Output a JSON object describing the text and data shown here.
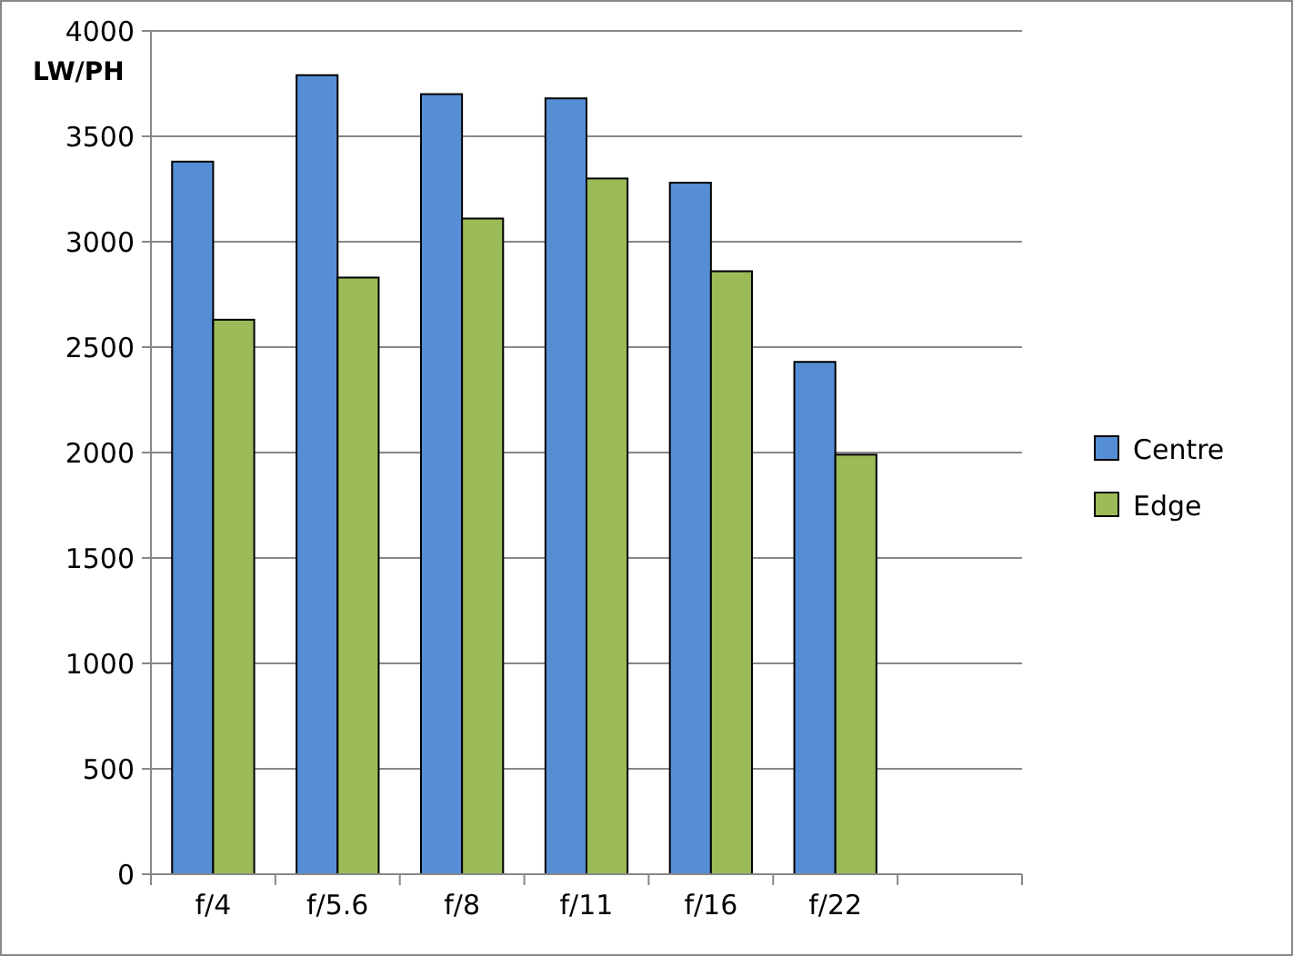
{
  "chart_data": {
    "type": "bar",
    "ylabel": "LW/PH",
    "categories": [
      "f/4",
      "f/5.6",
      "f/8",
      "f/11",
      "f/16",
      "f/22",
      null
    ],
    "series": [
      {
        "name": "Centre",
        "color": "#558ed5",
        "values": [
          3380,
          3790,
          3700,
          3680,
          3280,
          2430,
          null
        ]
      },
      {
        "name": "Edge",
        "color": "#9bbb59",
        "values": [
          2630,
          2830,
          3110,
          3300,
          2860,
          1990,
          null
        ]
      }
    ],
    "ylim": [
      0,
      4000
    ],
    "yticks": [
      0,
      500,
      1000,
      1500,
      2000,
      2500,
      3000,
      3500,
      4000
    ],
    "grid": "y",
    "legend": "right"
  }
}
